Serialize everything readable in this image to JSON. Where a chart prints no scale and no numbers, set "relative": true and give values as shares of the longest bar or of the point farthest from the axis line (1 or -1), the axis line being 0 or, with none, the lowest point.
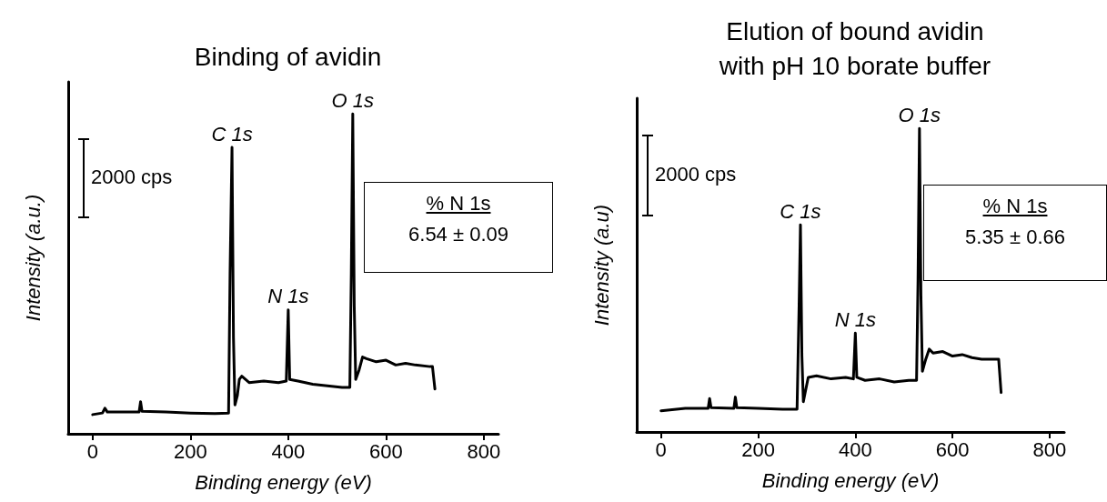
{
  "chart_data": [
    {
      "type": "line",
      "title": "Binding of avidin",
      "xlabel": "Binding energy (eV)",
      "ylabel": "Intensity (a.u.)",
      "relative": true,
      "xlim": [
        -50,
        830
      ],
      "xticks": [
        0,
        200,
        400,
        600,
        800
      ],
      "grid": false,
      "marker": "none",
      "line_style": "solid",
      "annotations": [
        "2000 cps",
        "% N 1s",
        "6.54 ± 0.09",
        {
          "text": "C 1s",
          "x": 285,
          "y": 0.895
        },
        {
          "text": "N 1s",
          "x": 400,
          "y": 0.387
        },
        {
          "text": "O 1s",
          "x": 532,
          "y": 1.0
        }
      ],
      "series": [
        {
          "color": "#000000",
          "x": [
            0,
            20,
            25,
            30,
            95,
            98,
            101,
            150,
            200,
            250,
            278,
            281,
            285,
            288,
            291,
            296,
            300,
            305,
            320,
            350,
            380,
            396,
            400,
            403,
            420,
            450,
            480,
            510,
            526,
            529,
            532,
            535,
            538,
            545,
            552,
            560,
            580,
            600,
            620,
            640,
            660,
            690,
            695,
            700
          ],
          "values": [
            0.06,
            0.065,
            0.08,
            0.068,
            0.068,
            0.1,
            0.07,
            0.068,
            0.065,
            0.063,
            0.065,
            0.5,
            0.895,
            0.3,
            0.09,
            0.12,
            0.17,
            0.18,
            0.16,
            0.165,
            0.16,
            0.165,
            0.387,
            0.17,
            0.165,
            0.155,
            0.15,
            0.145,
            0.145,
            0.5,
            1.0,
            0.4,
            0.17,
            0.2,
            0.24,
            0.235,
            0.225,
            0.23,
            0.215,
            0.22,
            0.215,
            0.21,
            0.21,
            0.14
          ]
        }
      ]
    },
    {
      "type": "line",
      "title": "Elution of bound avidin\nwith pH 10 borate buffer",
      "xlabel": "Binding energy (eV)",
      "ylabel": "Intensity (a.u)",
      "relative": true,
      "xlim": [
        -50,
        830
      ],
      "xticks": [
        0,
        200,
        400,
        600,
        800
      ],
      "grid": false,
      "marker": "none",
      "line_style": "solid",
      "annotations": [
        "2000 cps",
        "% N 1s",
        "5.35 ± 0.66",
        {
          "text": "C 1s",
          "x": 287,
          "y": 0.683
        },
        {
          "text": "N 1s",
          "x": 400,
          "y": 0.326
        },
        {
          "text": "O 1s",
          "x": 532,
          "y": 1.0
        }
      ],
      "series": [
        {
          "color": "#000000",
          "x": [
            0,
            50,
            97,
            100,
            103,
            150,
            153,
            156,
            200,
            250,
            280,
            284,
            287,
            290,
            293,
            298,
            303,
            320,
            350,
            380,
            396,
            400,
            403,
            420,
            450,
            480,
            510,
            526,
            529,
            532,
            535,
            538,
            545,
            552,
            560,
            580,
            600,
            620,
            640,
            660,
            690,
            695,
            700
          ],
          "values": [
            0.07,
            0.078,
            0.078,
            0.11,
            0.08,
            0.078,
            0.115,
            0.08,
            0.078,
            0.075,
            0.075,
            0.4,
            0.683,
            0.25,
            0.1,
            0.14,
            0.18,
            0.185,
            0.175,
            0.18,
            0.175,
            0.326,
            0.18,
            0.17,
            0.175,
            0.165,
            0.17,
            0.17,
            0.5,
            1.0,
            0.45,
            0.2,
            0.24,
            0.273,
            0.26,
            0.265,
            0.25,
            0.255,
            0.245,
            0.24,
            0.24,
            0.24,
            0.13
          ]
        }
      ]
    }
  ]
}
